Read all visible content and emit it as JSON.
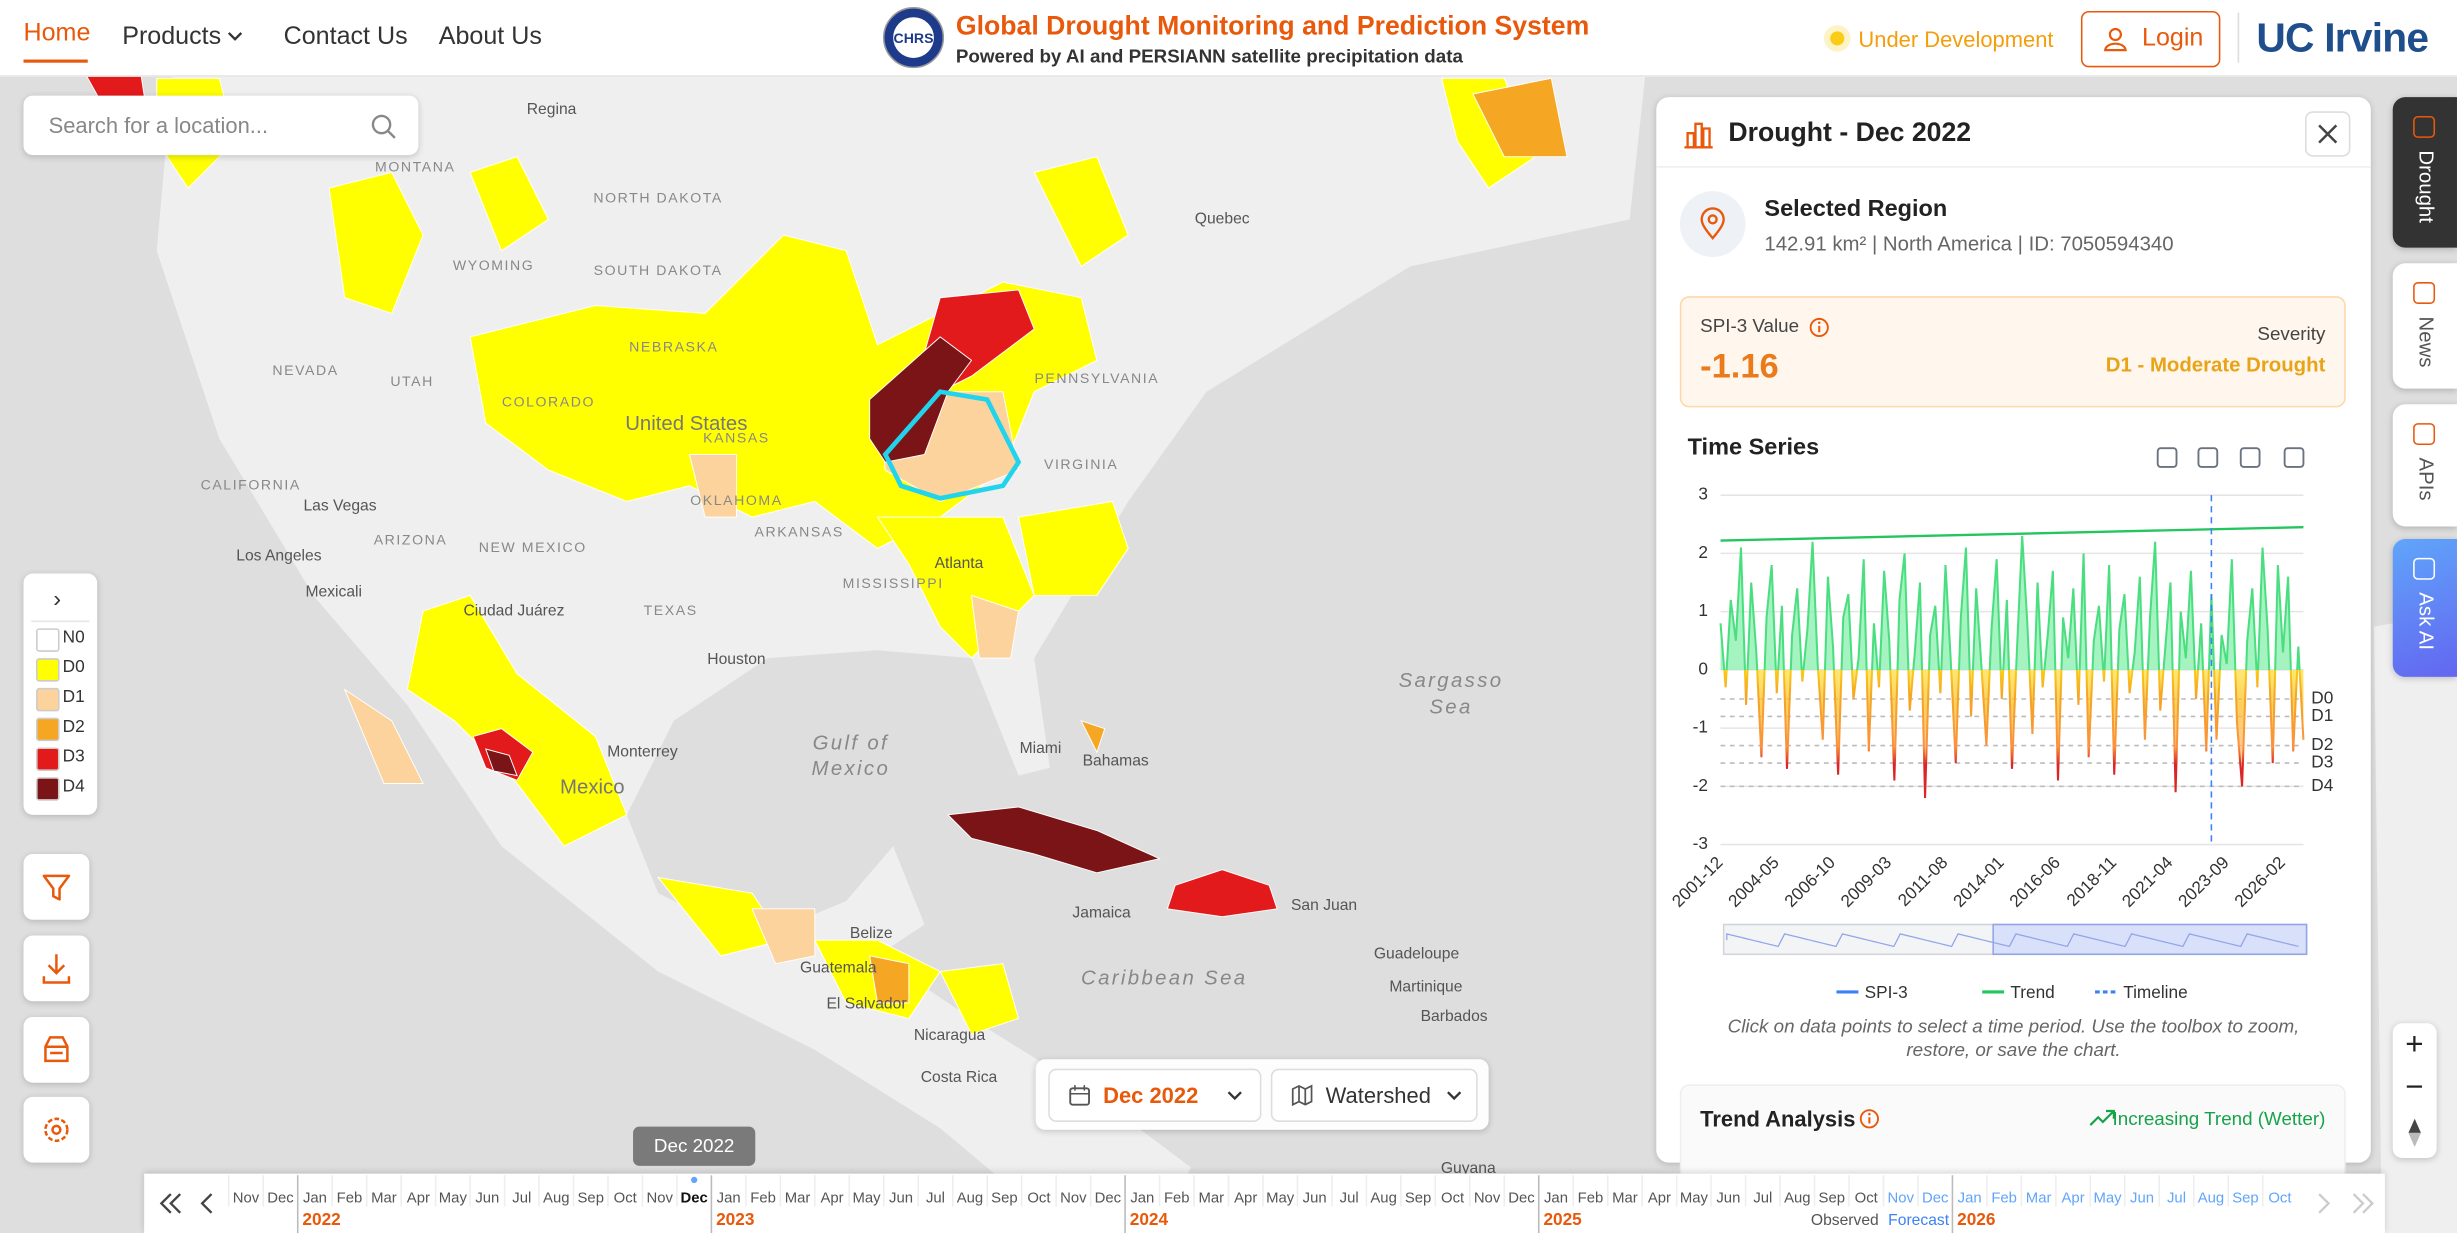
{
  "nav": {
    "items": [
      "Home",
      "Products",
      "Contact Us",
      "About Us"
    ]
  },
  "header": {
    "logo": "CHRS",
    "title": "Global Drought Monitoring and Prediction System",
    "subtitle": "Powered by AI and PERSIANN satellite precipitation data",
    "status": "Under Development",
    "login": "Login",
    "brand": "UC Irvine"
  },
  "search": {
    "placeholder": "Search for a location..."
  },
  "legend": {
    "toggle": "›",
    "items": [
      {
        "label": "N0",
        "color": "#ffffff"
      },
      {
        "label": "D0",
        "color": "#ffff00"
      },
      {
        "label": "D1",
        "color": "#fcd39c"
      },
      {
        "label": "D2",
        "color": "#f5a623"
      },
      {
        "label": "D3",
        "color": "#e31a1c"
      },
      {
        "label": "D4",
        "color": "#7b1416"
      }
    ]
  },
  "map": {
    "labels": [
      "Regina",
      "MONTANA",
      "NORTH DAKOTA",
      "SOUTH DAKOTA",
      "WYOMING",
      "NEBRASKA",
      "UTAH",
      "COLORADO",
      "KANSAS",
      "NEVADA",
      "CALIFORNIA",
      "ARIZONA",
      "NEW MEXICO",
      "OKLAHOMA",
      "TEXAS",
      "ARKANSAS",
      "MISSISSIPPI",
      "Las Vegas",
      "Los Angeles",
      "Mexicali",
      "Ciudad Juárez",
      "Monterrey",
      "Mexico",
      "Houston",
      "Atlanta",
      "Miami",
      "Gulf of",
      "Mexico",
      "Sargasso",
      "Sea",
      "Bahamas",
      "Caribbean Sea",
      "Guadeloupe",
      "Martinique",
      "Barbados",
      "San Juan",
      "Jamaica",
      "Belize",
      "Guatemala",
      "El Salvador",
      "Nicaragua",
      "Costa Rica",
      "Quebec",
      "VIRGINIA",
      "PENNSYLVANIA",
      "United States",
      "Guyana"
    ]
  },
  "controls": {
    "date": "Dec 2022",
    "layer": "Watershed"
  },
  "panel": {
    "title": "Drought - Dec 2022",
    "region_title": "Selected Region",
    "region_info": "142.91 km² | North America | ID: 7050594340",
    "spi_label": "SPI-3 Value",
    "spi_value": -1.16,
    "severity_label": "Severity",
    "severity": "D1 - Moderate Drought",
    "note": "Click on data points to select a time period. Use the toolbox to zoom, restore, or save the chart.",
    "trend_title": "Trend Analysis",
    "trend_status": "Increasing Trend (Wetter)",
    "chart": {
      "type": "line",
      "title": "Time Series",
      "categories": [
        "2001-12",
        null,
        null,
        null,
        null,
        null,
        null,
        null,
        null,
        null,
        null,
        "2004-05",
        null,
        null,
        null,
        null,
        null,
        null,
        null,
        null,
        null,
        null,
        "2006-10",
        null,
        null,
        null,
        null,
        null,
        null,
        null,
        null,
        null,
        null,
        "2009-03",
        null,
        null,
        null,
        null,
        null,
        null,
        null,
        null,
        null,
        null,
        "2011-08",
        null,
        null,
        null,
        null,
        null,
        null,
        null,
        null,
        null,
        null,
        "2014-01",
        null,
        null,
        null,
        null,
        null,
        null,
        null,
        null,
        null,
        null,
        "2016-06",
        null,
        null,
        null,
        null,
        null,
        null,
        null,
        null,
        null,
        null,
        "2018-11",
        null,
        null,
        null,
        null,
        null,
        null,
        null,
        null,
        null,
        null,
        "2021-04",
        null,
        null,
        null,
        null,
        null,
        null,
        null,
        null,
        null,
        null,
        "2023-09",
        null,
        null,
        null,
        null,
        null,
        null,
        null,
        null,
        null,
        null,
        "2026-02",
        null,
        null,
        null,
        null
      ],
      "ylim": [
        -3,
        3
      ],
      "yticks": [
        -3,
        -2,
        -1,
        0,
        1,
        2,
        3
      ],
      "series": [
        {
          "name": "SPI-3",
          "color": "#3b82f6",
          "values": [
            0.8,
            -0.3,
            1.2,
            0.5,
            2.1,
            -0.6,
            1.5,
            0.3,
            -1.5,
            0.9,
            1.8,
            -0.4,
            1.1,
            -1.7,
            0.6,
            1.4,
            -0.2,
            0.7,
            2.2,
            0.1,
            -1.2,
            1.6,
            0.4,
            -1.8,
            0.9,
            1.3,
            -0.5,
            0.2,
            1.9,
            -1.4,
            0.8,
            -0.3,
            1.7,
            0.5,
            -1.9,
            1.2,
            2.0,
            -0.7,
            0.3,
            1.5,
            -2.2,
            0.6,
            1.1,
            -0.4,
            1.8,
            0.2,
            -1.6,
            0.9,
            2.1,
            -0.8,
            1.4,
            0.1,
            -1.3,
            0.7,
            1.9,
            -0.5,
            1.2,
            -1.7,
            0.4,
            2.3,
            0.8,
            -1.1,
            1.5,
            -0.3,
            0.6,
            1.7,
            -1.9,
            0.9,
            0.2,
            1.4,
            -0.6,
            2.0,
            -1.5,
            0.5,
            1.1,
            -0.2,
            1.8,
            -1.8,
            0.7,
            1.3,
            -0.4,
            0.3,
            1.6,
            -1.2,
            0.9,
            2.2,
            -0.7,
            0.4,
            1.5,
            -2.1,
            1.0,
            0.2,
            1.7,
            -0.5,
            0.8,
            -1.4,
            1.3,
            -1.2,
            0.6,
            0.1,
            1.9,
            -0.9,
            -2.0,
            0.5,
            1.4,
            -0.3,
            2.1,
            0.7,
            -1.6,
            1.8,
            0.3,
            1.6,
            -1.4,
            0.4,
            -1.2
          ]
        }
      ],
      "trend": {
        "name": "Trend",
        "color": "#22c55e",
        "start": 2.22,
        "end": 2.45
      },
      "timeline": {
        "name": "Timeline",
        "color": "#3b82f6"
      },
      "thresholds": [
        {
          "label": "D0",
          "value": -0.5
        },
        {
          "label": "D1",
          "value": -0.8
        },
        {
          "label": "D2",
          "value": -1.3
        },
        {
          "label": "D3",
          "value": -1.6
        },
        {
          "label": "D4",
          "value": -2.0
        }
      ],
      "grid": true
    }
  },
  "side_tabs": [
    "Drought",
    "News",
    "APIs",
    "Ask AI"
  ],
  "zoom": [
    "+",
    "−"
  ],
  "timeline": {
    "tooltip": "Dec 2022",
    "lead_months": [
      "Nov",
      "Dec"
    ],
    "years": [
      {
        "label": "2022",
        "months": [
          "Jan",
          "Feb",
          "Mar",
          "Apr",
          "May",
          "Jun",
          "Jul",
          "Aug",
          "Sep",
          "Oct",
          "Nov",
          "Dec"
        ]
      },
      {
        "label": "2023",
        "months": [
          "Jan",
          "Feb",
          "Mar",
          "Apr",
          "May",
          "Jun",
          "Jul",
          "Aug",
          "Sep",
          "Oct",
          "Nov",
          "Dec"
        ]
      },
      {
        "label": "2024",
        "months": [
          "Jan",
          "Feb",
          "Mar",
          "Apr",
          "May",
          "Jun",
          "Jul",
          "Aug",
          "Sep",
          "Oct",
          "Nov",
          "Dec"
        ]
      },
      {
        "label": "2025",
        "months": [
          "Jan",
          "Feb",
          "Mar",
          "Apr",
          "May",
          "Jun",
          "Jul",
          "Aug",
          "Sep",
          "Oct",
          "Nov",
          "Dec"
        ]
      },
      {
        "label": "2026",
        "months": [
          "Jan",
          "Feb",
          "Mar",
          "Apr",
          "May",
          "Jun",
          "Jul",
          "Aug",
          "Sep",
          "Oct"
        ]
      }
    ],
    "observed": "Observed",
    "forecast": "Forecast"
  }
}
